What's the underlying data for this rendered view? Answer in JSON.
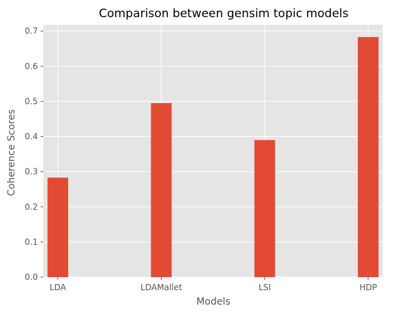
{
  "chart_data": {
    "type": "bar",
    "title": "Comparison between gensim topic models",
    "xlabel": "Models",
    "ylabel": "Coherence Scores",
    "categories": [
      "LDA",
      "LDAMallet",
      "LSI",
      "HDP"
    ],
    "values": [
      0.283,
      0.495,
      0.39,
      0.683
    ],
    "ylim": [
      0,
      0.718
    ],
    "yticks": [
      0.0,
      0.1,
      0.2,
      0.3,
      0.4,
      0.5,
      0.6,
      0.7
    ],
    "ytick_labels": [
      "0.0",
      "0.1",
      "0.2",
      "0.3",
      "0.4",
      "0.5",
      "0.6",
      "0.7"
    ],
    "grid": true,
    "style": "ggplot",
    "colors": {
      "bar": "#E24A33",
      "background": "#E5E5E5",
      "grid": "#FFFFFF"
    }
  }
}
